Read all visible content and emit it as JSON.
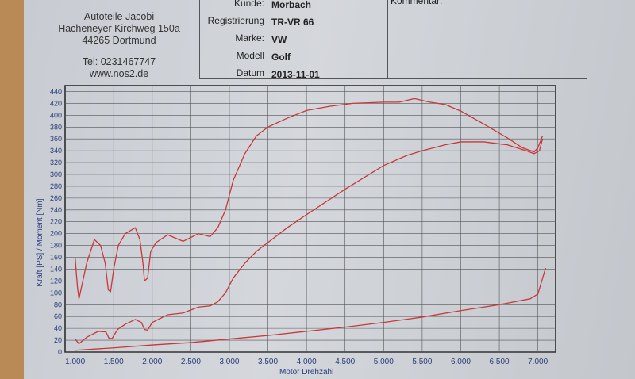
{
  "header": {
    "company": [
      "Autoteile Jacobi",
      "Hacheneyer Kirchweg 150a",
      "44265 Dortmund"
    ],
    "phone": "Tel: 0231467747",
    "web": "www.nos2.de",
    "fields": [
      {
        "label": "Kunde:",
        "value": "Morbach"
      },
      {
        "label": "Registrierung",
        "value": "TR-VR 66"
      },
      {
        "label": "Marke:",
        "value": "VW"
      },
      {
        "label": "Modell",
        "value": "Golf"
      },
      {
        "label": "Datum",
        "value": "2013-11-01"
      }
    ],
    "comment_label": "Kommentar:"
  },
  "chart_data": {
    "type": "line",
    "xlabel": "Motor Drehzahl",
    "ylabel": "Kraft [PS] / Moment [Nm]",
    "xlim": [
      870,
      7230
    ],
    "ylim": [
      0,
      450
    ],
    "x_ticks": [
      "1.000",
      "1.500",
      "2.000",
      "2.500",
      "3.000",
      "3.500",
      "4.000",
      "4.500",
      "5.000",
      "5.500",
      "6.000",
      "6.500",
      "7.000"
    ],
    "y_ticks": [
      0,
      20,
      40,
      60,
      80,
      100,
      120,
      140,
      160,
      180,
      200,
      220,
      240,
      260,
      280,
      300,
      320,
      340,
      360,
      380,
      400,
      420,
      440
    ],
    "grid": true,
    "line_color": "#c8383a",
    "series": [
      {
        "points": [
          [
            1000,
            160
          ],
          [
            1030,
            110
          ],
          [
            1050,
            90
          ],
          [
            1100,
            120
          ],
          [
            1150,
            150
          ],
          [
            1250,
            190
          ],
          [
            1330,
            180
          ],
          [
            1390,
            150
          ],
          [
            1430,
            105
          ],
          [
            1460,
            102
          ],
          [
            1500,
            140
          ],
          [
            1560,
            180
          ],
          [
            1650,
            200
          ],
          [
            1780,
            210
          ],
          [
            1840,
            190
          ],
          [
            1880,
            150
          ],
          [
            1900,
            120
          ],
          [
            1940,
            125
          ],
          [
            1980,
            170
          ],
          [
            2050,
            185
          ],
          [
            2200,
            198
          ],
          [
            2400,
            187
          ],
          [
            2600,
            200
          ],
          [
            2750,
            195
          ],
          [
            2850,
            210
          ],
          [
            2950,
            240
          ],
          [
            3050,
            290
          ],
          [
            3200,
            335
          ],
          [
            3350,
            365
          ],
          [
            3500,
            380
          ],
          [
            3750,
            395
          ],
          [
            4000,
            408
          ],
          [
            4300,
            415
          ],
          [
            4600,
            420
          ],
          [
            5000,
            422
          ],
          [
            5200,
            422
          ],
          [
            5400,
            428
          ],
          [
            5600,
            422
          ],
          [
            5800,
            418
          ],
          [
            6000,
            407
          ],
          [
            6300,
            385
          ],
          [
            6600,
            362
          ],
          [
            6800,
            345
          ],
          [
            6950,
            338
          ],
          [
            7000,
            345
          ],
          [
            7060,
            365
          ]
        ]
      },
      {
        "points": [
          [
            1000,
            22
          ],
          [
            1050,
            14
          ],
          [
            1150,
            25
          ],
          [
            1300,
            35
          ],
          [
            1400,
            34
          ],
          [
            1440,
            23
          ],
          [
            1480,
            23
          ],
          [
            1550,
            38
          ],
          [
            1650,
            47
          ],
          [
            1780,
            55
          ],
          [
            1860,
            50
          ],
          [
            1900,
            38
          ],
          [
            1940,
            37
          ],
          [
            2000,
            50
          ],
          [
            2200,
            63
          ],
          [
            2400,
            66
          ],
          [
            2600,
            76
          ],
          [
            2750,
            78
          ],
          [
            2850,
            85
          ],
          [
            2950,
            100
          ],
          [
            3050,
            125
          ],
          [
            3200,
            150
          ],
          [
            3350,
            170
          ],
          [
            3500,
            185
          ],
          [
            3750,
            210
          ],
          [
            4000,
            232
          ],
          [
            4500,
            275
          ],
          [
            5000,
            315
          ],
          [
            5300,
            332
          ],
          [
            5500,
            340
          ],
          [
            5800,
            350
          ],
          [
            6000,
            355
          ],
          [
            6300,
            355
          ],
          [
            6600,
            350
          ],
          [
            6850,
            340
          ],
          [
            6950,
            335
          ],
          [
            7020,
            340
          ],
          [
            7060,
            360
          ]
        ]
      },
      {
        "points": [
          [
            1000,
            3
          ],
          [
            1500,
            7
          ],
          [
            2000,
            12
          ],
          [
            2500,
            16
          ],
          [
            3000,
            22
          ],
          [
            3500,
            28
          ],
          [
            4000,
            35
          ],
          [
            4500,
            42
          ],
          [
            5000,
            50
          ],
          [
            5500,
            59
          ],
          [
            6000,
            70
          ],
          [
            6500,
            80
          ],
          [
            6900,
            90
          ],
          [
            7000,
            98
          ],
          [
            7050,
            120
          ],
          [
            7100,
            142
          ]
        ]
      }
    ]
  }
}
